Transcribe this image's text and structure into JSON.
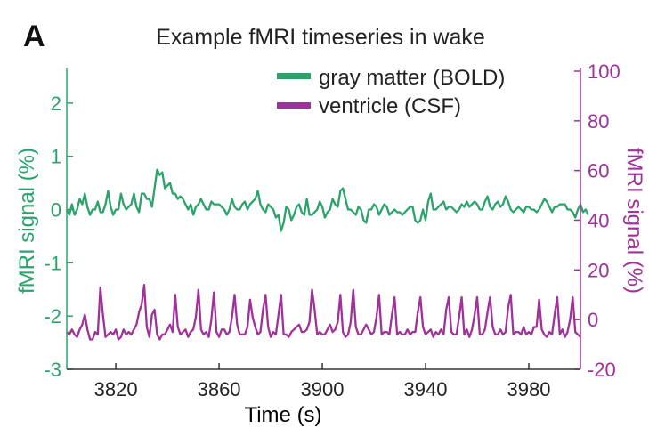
{
  "panel_label": "A",
  "colors": {
    "bold": "#2aa36b",
    "csf": "#a0309a",
    "axis": "#333333"
  },
  "chart_data": {
    "type": "line",
    "title": "Example fMRI timeseries in wake",
    "xlabel": "Time (s)",
    "ylabel_left": "fMRI signal (%)",
    "ylabel_right": "fMRI signal (%)",
    "xlim": [
      3801,
      4000
    ],
    "ylim_left": [
      -3,
      2.6
    ],
    "ylim_right": [
      -20,
      100
    ],
    "x_ticks": [
      3820,
      3860,
      3900,
      3940,
      3980
    ],
    "y_ticks_left": [
      -3,
      -2,
      -1,
      0,
      1,
      2
    ],
    "y_ticks_right": [
      -20,
      0,
      20,
      40,
      60,
      80,
      100
    ],
    "legend": {
      "position": "top-right",
      "entries": [
        "gray matter (BOLD)",
        "ventricle (CSF)"
      ]
    },
    "grid": false,
    "series": [
      {
        "name": "gray matter (BOLD)",
        "axis": "left",
        "x_start": 3801,
        "x_step": 1,
        "values": [
          0.0,
          -0.1,
          0.1,
          -0.1,
          0.0,
          0.2,
          0.1,
          0.3,
          0.05,
          -0.1,
          0.0,
          0.0,
          0.15,
          -0.05,
          -0.05,
          0.1,
          0.35,
          0.05,
          -0.1,
          0.0,
          0.0,
          0.3,
          0.1,
          0.0,
          0.05,
          0.1,
          0.3,
          0.05,
          -0.05,
          0.3,
          0.3,
          0.2,
          0.2,
          0.05,
          0.4,
          0.75,
          0.65,
          0.7,
          0.4,
          0.45,
          0.5,
          0.3,
          0.3,
          0.2,
          0.25,
          0.2,
          0.1,
          0.0,
          0.1,
          -0.1,
          0.05,
          0.1,
          0.2,
          0.1,
          0.0,
          0.0,
          0.15,
          0.1,
          0.1,
          0.1,
          0.05,
          0.0,
          -0.1,
          0.0,
          0.2,
          0.05,
          0.0,
          0.0,
          0.1,
          0.15,
          0.0,
          0.1,
          0.15,
          0.2,
          0.35,
          0.1,
          0.0,
          -0.05,
          0.1,
          0.05,
          0.0,
          -0.15,
          -0.1,
          -0.4,
          -0.25,
          0.05,
          0.0,
          -0.2,
          -0.1,
          0.05,
          0.1,
          -0.05,
          -0.1,
          0.2,
          -0.1,
          -0.1,
          -0.05,
          0.0,
          0.15,
          0.05,
          -0.15,
          -0.05,
          0.0,
          0.2,
          0.1,
          0.05,
          0.35,
          0.4,
          0.2,
          0.0,
          0.0,
          -0.05,
          -0.1,
          0.05,
          0.0,
          -0.2,
          -0.25,
          0.0,
          0.0,
          0.1,
          0.05,
          -0.1,
          0.0,
          0.1,
          0.05,
          -0.1,
          -0.05,
          0.0,
          -0.05,
          -0.05,
          -0.1,
          -0.05,
          0.0,
          0.05,
          0.05,
          -0.2,
          -0.25,
          -0.2,
          0.0,
          -0.2,
          0.15,
          0.3,
          0.0,
          0.0,
          0.05,
          0.1,
          0.15,
          0.0,
          0.05,
          0.05,
          0.0,
          -0.05,
          0.0,
          0.1,
          0.05,
          0.15,
          0.05,
          0.1,
          0.15,
          0.1,
          0.0,
          0.0,
          0.15,
          0.25,
          0.05,
          0.0,
          0.1,
          0.15,
          0.05,
          0.1,
          0.25,
          0.15,
          0.0,
          -0.05,
          0.0,
          0.05,
          0.0,
          -0.05,
          0.05,
          0.05,
          0.0,
          0.0,
          -0.05,
          0.0,
          0.1,
          0.2,
          0.15,
          0.05,
          -0.05,
          0.05,
          0.05,
          0.1,
          0.1,
          0.1,
          0.0,
          0.0,
          -0.05,
          -0.15,
          0.0,
          0.1,
          -0.05,
          0.0,
          -0.1
        ]
      },
      {
        "name": "ventricle (CSF)",
        "axis": "right",
        "x_start": 3801,
        "x_step": 1,
        "values": [
          -5,
          -6,
          -4,
          -6,
          -7,
          -4,
          -2,
          2,
          -4,
          -8,
          -8,
          -5,
          -6,
          13,
          2,
          -7,
          -6,
          -5,
          -6,
          -4,
          -8,
          -7,
          -4,
          -6,
          -5,
          -6,
          -4,
          -2,
          3,
          6,
          14,
          -3,
          -7,
          2,
          4,
          -6,
          -8,
          -6,
          -6,
          -4,
          -2,
          -5,
          10,
          -3,
          -6,
          -5,
          -4,
          -7,
          -5,
          -4,
          1,
          12,
          -4,
          -6,
          -5,
          -7,
          0,
          11,
          -5,
          -7,
          -4,
          -4,
          -6,
          -5,
          1,
          10,
          -2,
          -6,
          -6,
          -6,
          -3,
          8,
          1,
          -3,
          -6,
          -5,
          4,
          10,
          -3,
          -7,
          -5,
          -6,
          2,
          10,
          -6,
          -6,
          -7,
          -5,
          -4,
          -3,
          -2,
          -5,
          -5,
          -4,
          -1,
          12,
          4,
          -6,
          -5,
          -6,
          -6,
          -4,
          -2,
          -5,
          -4,
          -1,
          10,
          -5,
          -7,
          -6,
          -1,
          12,
          -3,
          -6,
          -6,
          -4,
          -2,
          -4,
          -6,
          -5,
          1,
          10,
          -6,
          -5,
          -5,
          -6,
          2,
          9,
          -6,
          -5,
          -6,
          -6,
          -4,
          -6,
          -5,
          -5,
          3,
          9,
          -3,
          -6,
          -5,
          -4,
          -7,
          -5,
          -6,
          -4,
          -6,
          4,
          9,
          -5,
          -6,
          -6,
          1,
          9,
          -6,
          -4,
          -7,
          -4,
          2,
          9,
          -6,
          -6,
          -4,
          3,
          9,
          -3,
          -6,
          -6,
          -4,
          -6,
          -5,
          5,
          10,
          -6,
          -5,
          -5,
          -6,
          -3,
          -6,
          -5,
          -6,
          -3,
          -3,
          8,
          -4,
          -6,
          -7,
          -5,
          -6,
          2,
          9,
          -6,
          -4,
          -7,
          -5,
          0,
          9,
          -5,
          -6,
          -7
        ]
      }
    ]
  }
}
